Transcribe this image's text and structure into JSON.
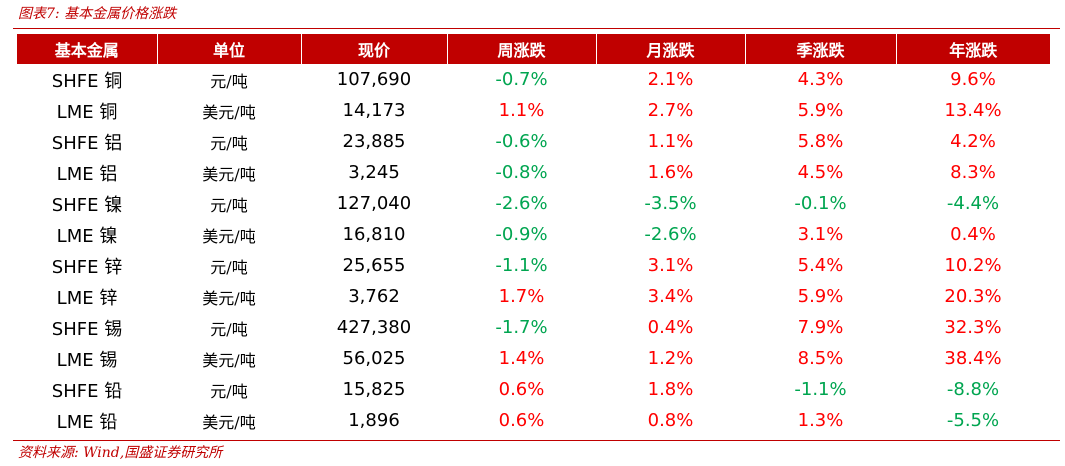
{
  "caption": "图表7:  基本金属价格涨跌",
  "source": "资料来源:  Wind,国盛证券研究所",
  "colors": {
    "accent": "#c00000",
    "increase": "#ff0000",
    "decrease": "#00a550"
  },
  "table": {
    "headers": [
      "基本金属",
      "单位",
      "现价",
      "周涨跌",
      "月涨跌",
      "季涨跌",
      "年涨跌"
    ],
    "rows": [
      [
        "SHFE 铜",
        "元/吨",
        "107,690",
        "-0.7%",
        "2.1%",
        "4.3%",
        "9.6%"
      ],
      [
        "LME 铜",
        "美元/吨",
        "14,173",
        "1.1%",
        "2.7%",
        "5.9%",
        "13.4%"
      ],
      [
        "SHFE 铝",
        "元/吨",
        "23,885",
        "-0.6%",
        "1.1%",
        "5.8%",
        "4.2%"
      ],
      [
        "LME 铝",
        "美元/吨",
        "3,245",
        "-0.8%",
        "1.6%",
        "4.5%",
        "8.3%"
      ],
      [
        "SHFE 镍",
        "元/吨",
        "127,040",
        "-2.6%",
        "-3.5%",
        "-0.1%",
        "-4.4%"
      ],
      [
        "LME 镍",
        "美元/吨",
        "16,810",
        "-0.9%",
        "-2.6%",
        "3.1%",
        "0.4%"
      ],
      [
        "SHFE 锌",
        "元/吨",
        "25,655",
        "-1.1%",
        "3.1%",
        "5.4%",
        "10.2%"
      ],
      [
        "LME 锌",
        "美元/吨",
        "3,762",
        "1.7%",
        "3.4%",
        "5.9%",
        "20.3%"
      ],
      [
        "SHFE 锡",
        "元/吨",
        "427,380",
        "-1.7%",
        "0.4%",
        "7.9%",
        "32.3%"
      ],
      [
        "LME 锡",
        "美元/吨",
        "56,025",
        "1.4%",
        "1.2%",
        "8.5%",
        "38.4%"
      ],
      [
        "SHFE 铅",
        "元/吨",
        "15,825",
        "0.6%",
        "1.8%",
        "-1.1%",
        "-8.8%"
      ],
      [
        "LME 铅",
        "美元/吨",
        "1,896",
        "0.6%",
        "0.8%",
        "1.3%",
        "-5.5%"
      ]
    ]
  }
}
